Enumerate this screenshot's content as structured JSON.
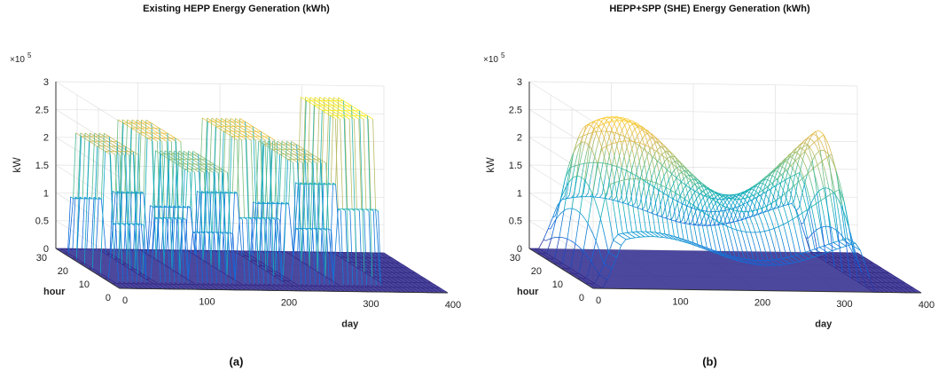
{
  "chart_data": [
    {
      "type": "surface-3d",
      "title": "Existing HEPP Energy Generation (kWh)",
      "panel_label": "(a)",
      "xlabel": "day",
      "ylabel": "hour",
      "zlabel": "kW",
      "z_multiplier": "×10",
      "z_exponent": "5",
      "xlim": [
        0,
        400
      ],
      "ylim": [
        0,
        30
      ],
      "zlim": [
        0,
        3
      ],
      "x_ticks": [
        "0",
        "100",
        "200",
        "300",
        "400"
      ],
      "y_ticks": [
        "0",
        "10",
        "20",
        "30"
      ],
      "z_ticks": [
        "0",
        "0.5",
        "1",
        "1.5",
        "2",
        "2.5",
        "3"
      ],
      "grid": true,
      "colormap": "parula",
      "colors": {
        "low": "#352a87",
        "mid": "#21a9c9",
        "high": "#f9fb0e"
      }
    },
    {
      "type": "surface-3d",
      "title": "HEPP+SPP (SHE) Energy Generation (kWh)",
      "panel_label": "(b)",
      "xlabel": "day",
      "ylabel": "hour",
      "zlabel": "kW",
      "z_multiplier": "×10",
      "z_exponent": "5",
      "xlim": [
        0,
        400
      ],
      "ylim": [
        0,
        30
      ],
      "zlim": [
        0,
        3
      ],
      "x_ticks": [
        "0",
        "100",
        "200",
        "300",
        "400"
      ],
      "y_ticks": [
        "0",
        "10",
        "20",
        "30"
      ],
      "z_ticks": [
        "0",
        "0.5",
        "1",
        "1.5",
        "2",
        "2.5",
        "3"
      ],
      "grid": true,
      "colormap": "parula",
      "colors": {
        "low": "#352a87",
        "mid": "#21a9c9",
        "high": "#f9fb0e"
      }
    }
  ]
}
